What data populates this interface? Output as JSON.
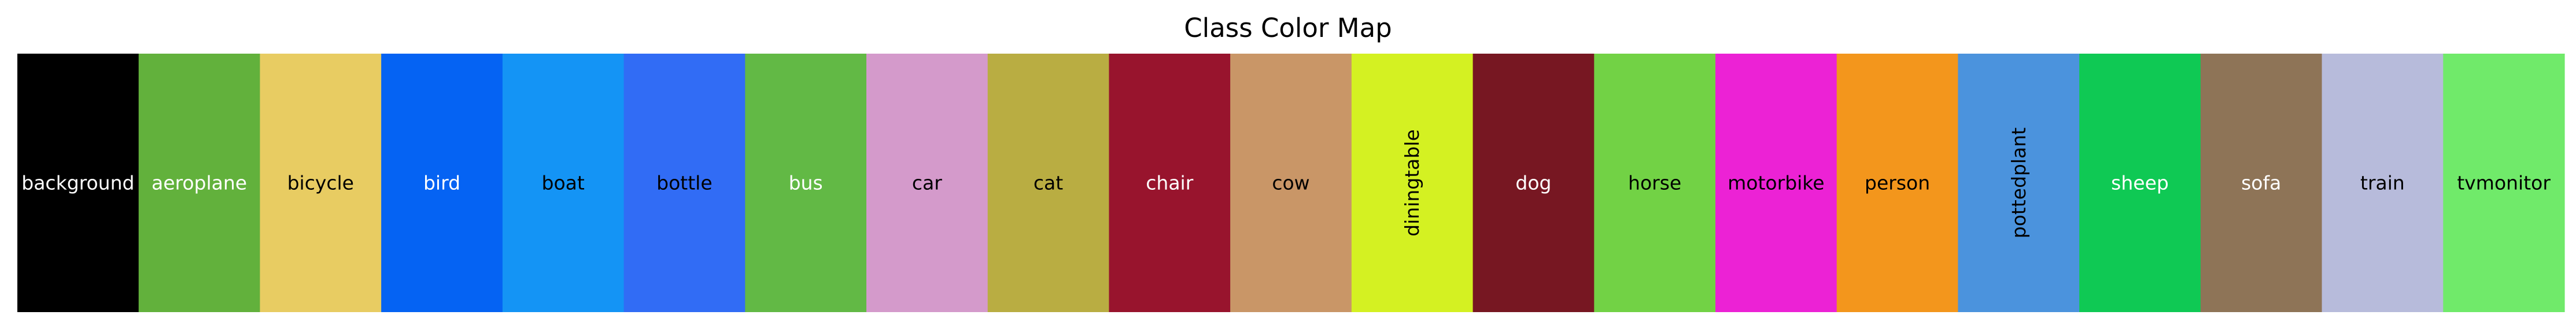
{
  "chart_data": {
    "type": "table",
    "title": "Class Color Map",
    "classes": [
      {
        "label": "background",
        "color": "#000000",
        "text_color": "#ffffff",
        "rotated": false
      },
      {
        "label": "aeroplane",
        "color": "#62b13c",
        "text_color": "#ffffff",
        "rotated": false
      },
      {
        "label": "bicycle",
        "color": "#e8cc62",
        "text_color": "#000000",
        "rotated": false
      },
      {
        "label": "bird",
        "color": "#0563f3",
        "text_color": "#ffffff",
        "rotated": false
      },
      {
        "label": "boat",
        "color": "#1494f5",
        "text_color": "#000000",
        "rotated": false
      },
      {
        "label": "bottle",
        "color": "#316cf5",
        "text_color": "#000000",
        "rotated": false
      },
      {
        "label": "bus",
        "color": "#62b945",
        "text_color": "#ffffff",
        "rotated": false
      },
      {
        "label": "car",
        "color": "#d49acb",
        "text_color": "#000000",
        "rotated": false
      },
      {
        "label": "cat",
        "color": "#b9ad42",
        "text_color": "#000000",
        "rotated": false
      },
      {
        "label": "chair",
        "color": "#98142d",
        "text_color": "#ffffff",
        "rotated": false
      },
      {
        "label": "cow",
        "color": "#c99667",
        "text_color": "#000000",
        "rotated": false
      },
      {
        "label": "diningtable",
        "color": "#d4f122",
        "text_color": "#000000",
        "rotated": true
      },
      {
        "label": "dog",
        "color": "#771722",
        "text_color": "#ffffff",
        "rotated": false
      },
      {
        "label": "horse",
        "color": "#72d245",
        "text_color": "#000000",
        "rotated": false
      },
      {
        "label": "motorbike",
        "color": "#ec22d5",
        "text_color": "#000000",
        "rotated": false
      },
      {
        "label": "person",
        "color": "#f3961c",
        "text_color": "#000000",
        "rotated": false
      },
      {
        "label": "pottedplant",
        "color": "#4b93dd",
        "text_color": "#000000",
        "rotated": true
      },
      {
        "label": "sheep",
        "color": "#0fc954",
        "text_color": "#ffffff",
        "rotated": false
      },
      {
        "label": "sofa",
        "color": "#8e7457",
        "text_color": "#ffffff",
        "rotated": false
      },
      {
        "label": "train",
        "color": "#b7bbdb",
        "text_color": "#000000",
        "rotated": false
      },
      {
        "label": "tvmonitor",
        "color": "#70ea6a",
        "text_color": "#000000",
        "rotated": false
      }
    ]
  }
}
